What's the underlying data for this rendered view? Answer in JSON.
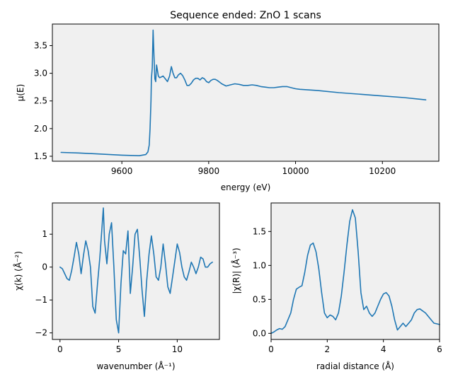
{
  "chart_data": [
    {
      "id": "mu",
      "type": "line",
      "title": "Sequence ended: ZnO  1 scans",
      "xlabel": "energy (eV)",
      "ylabel": "μ(E)",
      "xlim": [
        9440,
        10330
      ],
      "ylim": [
        1.41,
        3.89
      ],
      "xticks": [
        9600,
        9800,
        10000,
        10200
      ],
      "yticks": [
        1.5,
        2.0,
        2.5,
        3.0,
        3.5
      ],
      "xtick_labels": [
        "9600",
        "9800",
        "10000",
        "10200"
      ],
      "ytick_labels": [
        "1.5",
        "2.0",
        "2.5",
        "3.0",
        "3.5"
      ],
      "grid": false,
      "color": "#1f77b4",
      "x": [
        9460,
        9500,
        9550,
        9600,
        9640,
        9655,
        9660,
        9663,
        9665,
        9667,
        9668,
        9670,
        9672,
        9674,
        9676,
        9678,
        9680,
        9682,
        9684,
        9687,
        9690,
        9695,
        9700,
        9705,
        9710,
        9714,
        9718,
        9722,
        9726,
        9730,
        9735,
        9740,
        9745,
        9750,
        9755,
        9760,
        9765,
        9770,
        9775,
        9780,
        9785,
        9790,
        9795,
        9800,
        9805,
        9810,
        9815,
        9820,
        9825,
        9830,
        9840,
        9850,
        9860,
        9870,
        9880,
        9890,
        9900,
        9910,
        9920,
        9930,
        9940,
        9950,
        9960,
        9970,
        9980,
        9990,
        10000,
        10010,
        10050,
        10100,
        10150,
        10200,
        10250,
        10300
      ],
      "y": [
        1.57,
        1.56,
        1.54,
        1.52,
        1.51,
        1.53,
        1.58,
        1.7,
        2.0,
        2.5,
        2.9,
        3.1,
        3.78,
        3.3,
        2.9,
        2.85,
        3.15,
        3.05,
        2.95,
        2.92,
        2.93,
        2.95,
        2.9,
        2.85,
        2.95,
        3.12,
        3.0,
        2.92,
        2.92,
        2.97,
        3.0,
        2.96,
        2.88,
        2.78,
        2.78,
        2.82,
        2.88,
        2.91,
        2.91,
        2.88,
        2.92,
        2.9,
        2.85,
        2.83,
        2.87,
        2.89,
        2.89,
        2.87,
        2.84,
        2.81,
        2.77,
        2.79,
        2.81,
        2.8,
        2.78,
        2.78,
        2.79,
        2.78,
        2.76,
        2.75,
        2.74,
        2.74,
        2.75,
        2.76,
        2.76,
        2.74,
        2.72,
        2.71,
        2.69,
        2.65,
        2.62,
        2.59,
        2.56,
        2.52
      ]
    },
    {
      "id": "chik",
      "type": "line",
      "xlabel": "wavenumber (Å⁻¹)",
      "ylabel": "χ(k)  (Å⁻²)",
      "xlim": [
        -0.65,
        13.6
      ],
      "ylim": [
        -2.2,
        1.95
      ],
      "xticks": [
        0,
        5,
        10
      ],
      "yticks": [
        -2,
        -1,
        0,
        1
      ],
      "xtick_labels": [
        "0",
        "5",
        "10"
      ],
      "ytick_labels": [
        "−2",
        "−1",
        "0",
        "1"
      ],
      "grid": false,
      "color": "#1f77b4",
      "x": [
        0.0,
        0.2,
        0.4,
        0.6,
        0.8,
        1.0,
        1.2,
        1.4,
        1.6,
        1.8,
        2.0,
        2.2,
        2.4,
        2.6,
        2.8,
        3.0,
        3.2,
        3.4,
        3.6,
        3.7,
        3.8,
        4.0,
        4.2,
        4.4,
        4.6,
        4.8,
        5.0,
        5.2,
        5.4,
        5.6,
        5.8,
        6.0,
        6.2,
        6.4,
        6.6,
        6.8,
        7.0,
        7.2,
        7.4,
        7.6,
        7.8,
        8.0,
        8.2,
        8.4,
        8.6,
        8.8,
        9.0,
        9.2,
        9.4,
        9.6,
        9.8,
        10.0,
        10.2,
        10.4,
        10.6,
        10.8,
        11.0,
        11.2,
        11.4,
        11.6,
        11.8,
        12.0,
        12.2,
        12.4,
        12.6,
        12.8,
        13.0
      ],
      "y": [
        0.0,
        -0.05,
        -0.2,
        -0.35,
        -0.4,
        -0.1,
        0.3,
        0.75,
        0.4,
        -0.2,
        0.35,
        0.8,
        0.5,
        0.0,
        -1.2,
        -1.4,
        -0.5,
        0.3,
        1.3,
        1.8,
        0.8,
        0.1,
        1.0,
        1.35,
        0.0,
        -1.6,
        -2.0,
        -0.5,
        0.5,
        0.4,
        1.1,
        -0.8,
        0.0,
        1.0,
        1.15,
        0.3,
        -0.7,
        -1.5,
        -0.4,
        0.4,
        0.95,
        0.4,
        -0.3,
        -0.4,
        0.0,
        0.7,
        0.1,
        -0.6,
        -0.8,
        -0.3,
        0.2,
        0.7,
        0.45,
        0.0,
        -0.3,
        -0.4,
        -0.15,
        0.15,
        0.0,
        -0.2,
        0.0,
        0.3,
        0.25,
        0.0,
        0.0,
        0.1,
        0.15
      ]
    },
    {
      "id": "chir",
      "type": "line",
      "xlabel": "radial distance (Å)",
      "ylabel": "|χ(R)|  (Å⁻³)",
      "xlim": [
        0,
        6
      ],
      "ylim": [
        -0.09,
        1.92
      ],
      "xticks": [
        0,
        2,
        4,
        6
      ],
      "yticks": [
        0.0,
        0.5,
        1.0,
        1.5
      ],
      "xtick_labels": [
        "0",
        "2",
        "4",
        "6"
      ],
      "ytick_labels": [
        "0.0",
        "0.5",
        "1.0",
        "1.5"
      ],
      "grid": false,
      "color": "#1f77b4",
      "x": [
        0.0,
        0.1,
        0.2,
        0.3,
        0.4,
        0.5,
        0.6,
        0.7,
        0.8,
        0.9,
        1.0,
        1.1,
        1.2,
        1.3,
        1.4,
        1.5,
        1.6,
        1.7,
        1.8,
        1.9,
        2.0,
        2.1,
        2.2,
        2.3,
        2.4,
        2.5,
        2.6,
        2.7,
        2.8,
        2.9,
        3.0,
        3.1,
        3.2,
        3.3,
        3.4,
        3.5,
        3.6,
        3.7,
        3.8,
        3.9,
        4.0,
        4.1,
        4.2,
        4.3,
        4.4,
        4.5,
        4.6,
        4.7,
        4.8,
        4.9,
        5.0,
        5.1,
        5.2,
        5.3,
        5.4,
        5.5,
        5.6,
        5.7,
        5.8,
        5.9,
        6.0
      ],
      "y": [
        0.0,
        0.02,
        0.05,
        0.07,
        0.06,
        0.1,
        0.2,
        0.3,
        0.5,
        0.65,
        0.68,
        0.7,
        0.9,
        1.15,
        1.3,
        1.33,
        1.2,
        0.95,
        0.6,
        0.3,
        0.23,
        0.27,
        0.25,
        0.2,
        0.3,
        0.55,
        0.9,
        1.3,
        1.65,
        1.82,
        1.7,
        1.2,
        0.6,
        0.35,
        0.4,
        0.3,
        0.25,
        0.3,
        0.4,
        0.5,
        0.58,
        0.6,
        0.55,
        0.4,
        0.2,
        0.05,
        0.1,
        0.15,
        0.1,
        0.15,
        0.2,
        0.3,
        0.35,
        0.36,
        0.33,
        0.3,
        0.25,
        0.2,
        0.15,
        0.14,
        0.13
      ]
    }
  ]
}
